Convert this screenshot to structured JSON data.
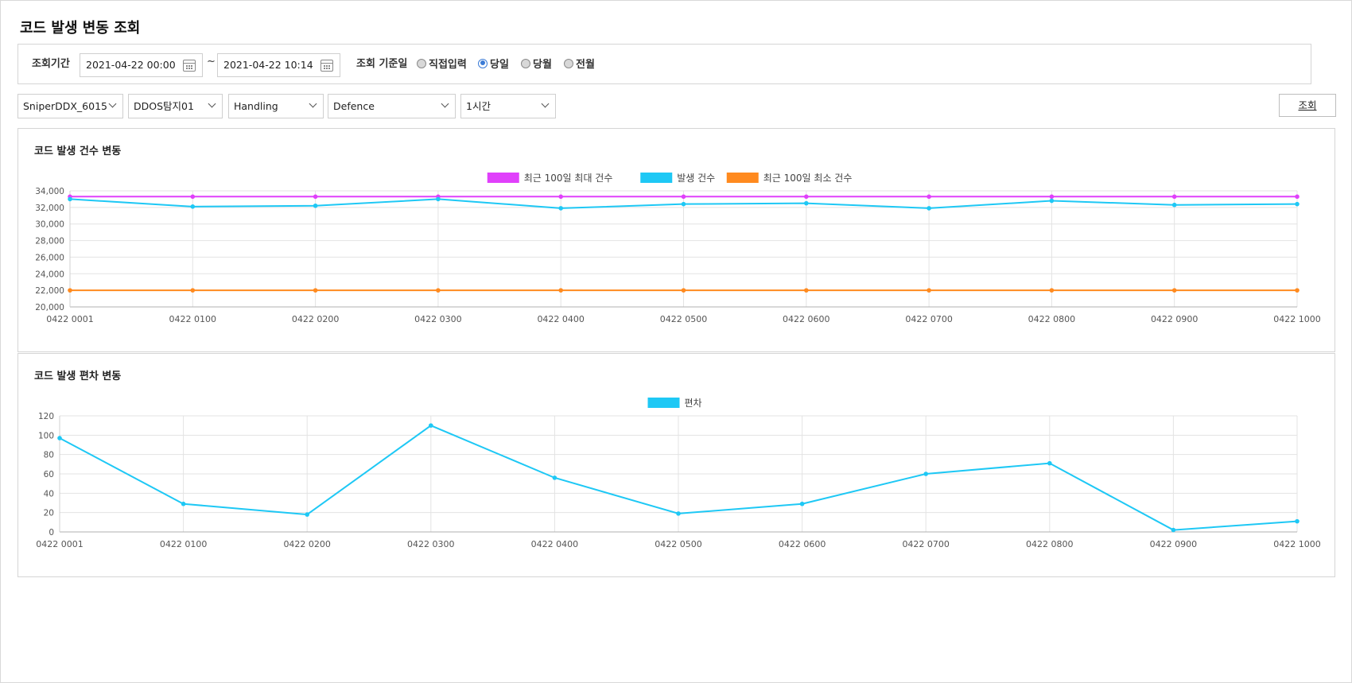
{
  "page": {
    "title": "코드 발생 변동 조회"
  },
  "filters": {
    "period_label": "조회기간",
    "start_date": "2021-04-22 00:00",
    "tilde": "~",
    "end_date": "2021-04-22 10:14",
    "basis_label": "조회 기준일",
    "radios": [
      {
        "label": "직접입력",
        "checked": false
      },
      {
        "label": "당일",
        "checked": true
      },
      {
        "label": "당월",
        "checked": false
      },
      {
        "label": "전월",
        "checked": false
      }
    ],
    "selects": [
      "SniperDDX_6015",
      "DDOS탐지01",
      "Handling",
      "Defence",
      "1시간"
    ],
    "search_label": "조회"
  },
  "panels": [
    {
      "title": "코드 발생 건수 변동"
    },
    {
      "title": "코드 발생 편차 변동"
    }
  ],
  "colors": {
    "magenta": "#e040fb",
    "cyan": "#1ec8f5",
    "orange": "#ff8a1f"
  },
  "chart_data": [
    {
      "type": "line",
      "categories": [
        "0422 0001",
        "0422 0100",
        "0422 0200",
        "0422 0300",
        "0422 0400",
        "0422 0500",
        "0422 0600",
        "0422 0700",
        "0422 0800",
        "0422 0900",
        "0422 1000"
      ],
      "series": [
        {
          "name": "최근 100일 최대 건수",
          "color": "#e040fb",
          "values": [
            33300,
            33300,
            33300,
            33300,
            33300,
            33300,
            33300,
            33300,
            33300,
            33300,
            33300
          ]
        },
        {
          "name": "발생 건수",
          "color": "#1ec8f5",
          "values": [
            33000,
            32100,
            32200,
            33000,
            31900,
            32400,
            32500,
            31900,
            32800,
            32300,
            32400
          ]
        },
        {
          "name": "최근 100일 최소 건수",
          "color": "#ff8a1f",
          "values": [
            22000,
            22000,
            22000,
            22000,
            22000,
            22000,
            22000,
            22000,
            22000,
            22000,
            22000
          ]
        }
      ],
      "ylim": [
        20000,
        34000
      ],
      "yticks": [
        "34,000",
        "32,000",
        "30,000",
        "28,000",
        "26,000",
        "24,000",
        "22,000",
        "20,000"
      ],
      "ytick_values": [
        34000,
        32000,
        30000,
        28000,
        26000,
        24000,
        22000,
        20000
      ],
      "grid": true,
      "legend": "top-center"
    },
    {
      "type": "line",
      "categories": [
        "0422 0001",
        "0422 0100",
        "0422 0200",
        "0422 0300",
        "0422 0400",
        "0422 0500",
        "0422 0600",
        "0422 0700",
        "0422 0800",
        "0422 0900",
        "0422 1000"
      ],
      "series": [
        {
          "name": "편차",
          "color": "#1ec8f5",
          "values": [
            97,
            29,
            18,
            110,
            56,
            19,
            29,
            60,
            71,
            2,
            11
          ]
        }
      ],
      "ylim": [
        0,
        120
      ],
      "yticks": [
        "120",
        "100",
        "80",
        "60",
        "40",
        "20",
        "0"
      ],
      "ytick_values": [
        120,
        100,
        80,
        60,
        40,
        20,
        0
      ],
      "grid": true,
      "legend": "top-center"
    }
  ]
}
